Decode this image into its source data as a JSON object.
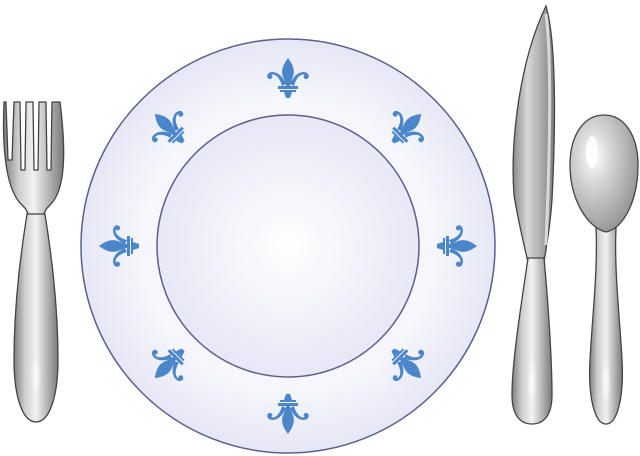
{
  "scene": {
    "background": "#ffffff",
    "objects": [
      {
        "name": "fork",
        "icon": "fork-icon",
        "material": "silver"
      },
      {
        "name": "dinner-plate",
        "icon": "plate-icon",
        "material": "porcelain"
      },
      {
        "name": "knife",
        "icon": "knife-icon",
        "material": "silver"
      },
      {
        "name": "spoon",
        "icon": "spoon-icon",
        "material": "silver"
      }
    ],
    "plate": {
      "decoration": "fleur-de-lis-icon",
      "motif_count": 8,
      "rim_color": "#edeef9",
      "well_color": "#f1f1fb",
      "outline_color": "#5b5f8f",
      "motif_color": "#4a86c9"
    },
    "cutlery": {
      "outline_color": "#444444",
      "metal_light": "#f4f4f4",
      "metal_dark": "#8a8a8a"
    }
  }
}
